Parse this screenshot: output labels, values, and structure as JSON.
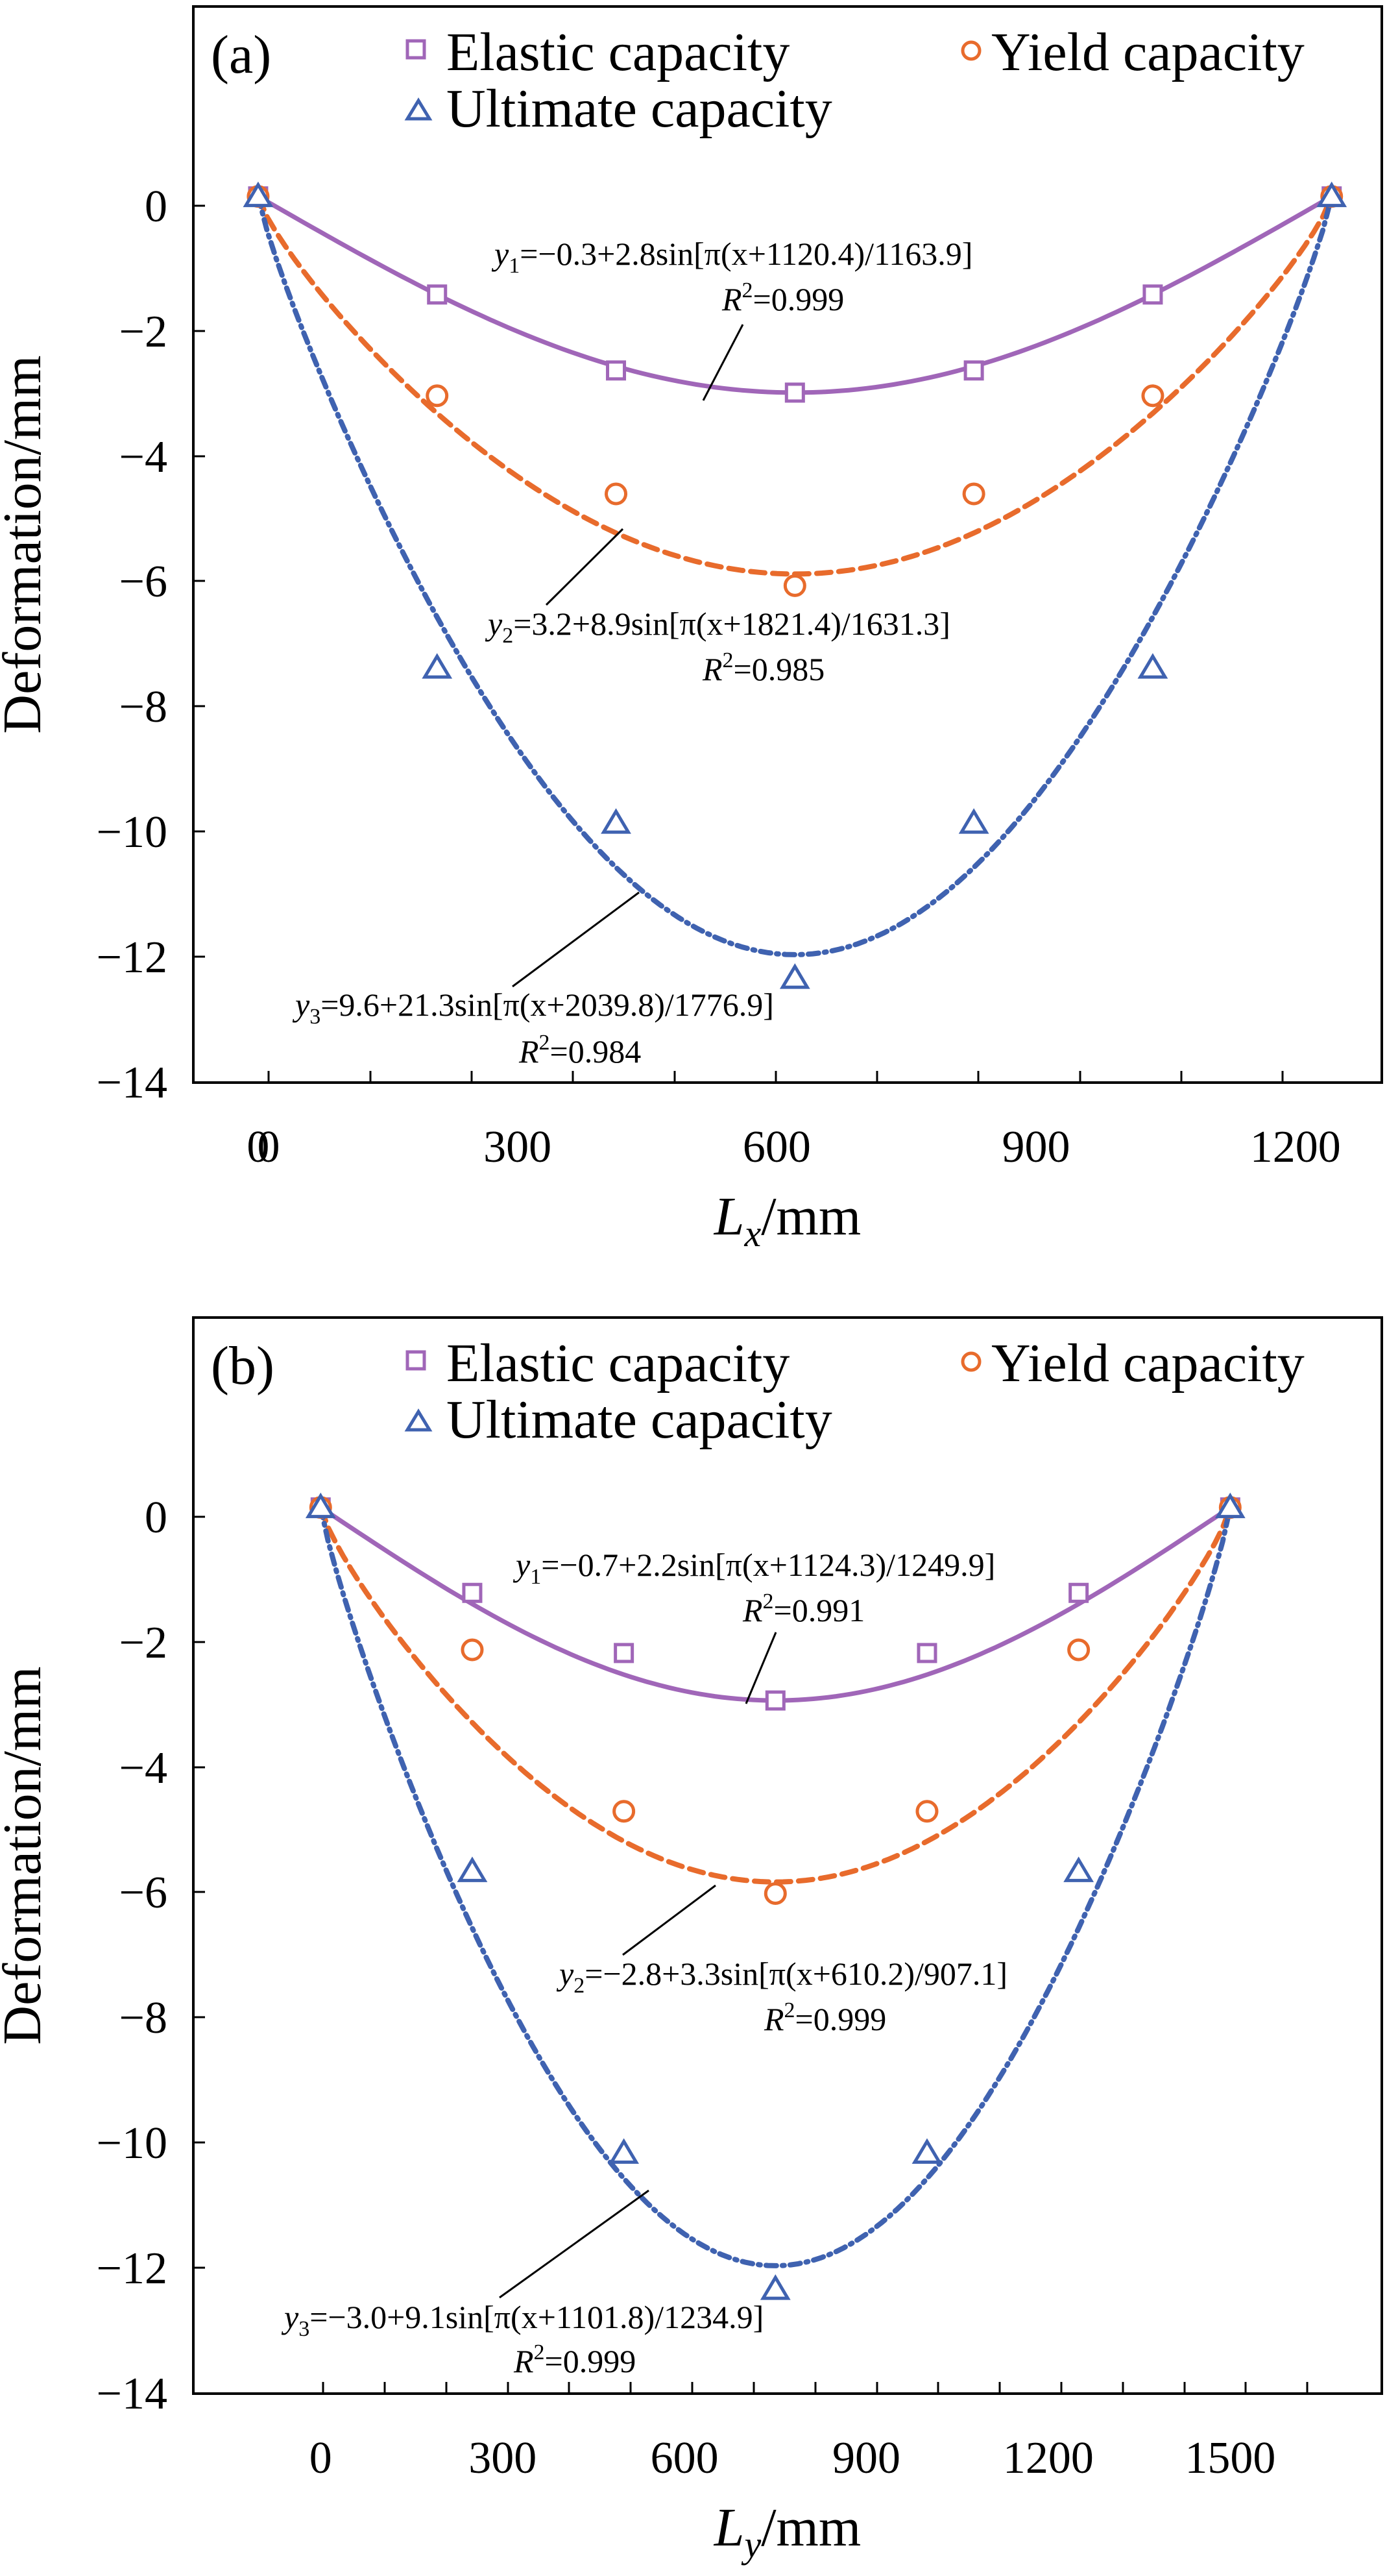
{
  "chart_data": [
    {
      "type": "scatter",
      "panel_label": "(a)",
      "xlabel": {
        "main": "L",
        "sub": "x",
        "unit": "/mm"
      },
      "ylabel": "Deformation/mm",
      "xlim": [
        -75,
        1300
      ],
      "ylim": [
        -14,
        3
      ],
      "xticks": [
        "0",
        "300",
        "600",
        "900",
        "1200"
      ],
      "xtick_values": [
        0,
        300,
        600,
        900,
        1200
      ],
      "yticks": [
        "0",
        "−2",
        "−4",
        "−6",
        "−8",
        "−10",
        "−12",
        "−14"
      ],
      "ytick_values": [
        0,
        -2,
        -4,
        -6,
        -8,
        -10,
        -12,
        -14
      ],
      "legend": {
        "placement": "top",
        "entries": [
          "Elastic capacity",
          "Yield capacity",
          "Ultimate capacity"
        ]
      },
      "series": [
        {
          "name": "Elastic capacity",
          "color": "#a066b8",
          "marker": "square",
          "line": "solid",
          "fit": {
            "a": -0.3,
            "b": 2.8,
            "c": 1120.4,
            "d": 1163.9
          },
          "equation": {
            "var": "y",
            "sub": "1",
            "rhs": "=−0.3+2.8sin[π(x+1120.4)/1163.9]",
            "r2": "=0.999"
          },
          "x": [
            0,
            207,
            414,
            621,
            828,
            1035,
            1242
          ],
          "y": [
            0,
            -1.55,
            -2.75,
            -3.1,
            -2.75,
            -1.55,
            0
          ]
        },
        {
          "name": "Yield capacity",
          "color": "#e86b2c",
          "marker": "circle",
          "line": "dashed",
          "fit": {
            "a": 3.2,
            "b": 8.9,
            "c": 1821.4,
            "d": 1631.3
          },
          "equation": {
            "var": "y",
            "sub": "2",
            "rhs": "=3.2+8.9sin[π(x+1821.4)/1631.3]",
            "r2": "=0.985"
          },
          "x": [
            0,
            207,
            414,
            621,
            828,
            1035,
            1242
          ],
          "y": [
            0,
            -3.15,
            -4.7,
            -6.15,
            -4.7,
            -3.15,
            0
          ]
        },
        {
          "name": "Ultimate capacity",
          "color": "#3f62b0",
          "marker": "triangle",
          "line": "dashdot",
          "fit": {
            "a": 9.6,
            "b": 21.3,
            "c": 2039.8,
            "d": 1776.9
          },
          "equation": {
            "var": "y",
            "sub": "3",
            "rhs": "=9.6+21.3sin[π(x+2039.8)/1776.9]",
            "r2": "=0.984"
          },
          "x": [
            0,
            207,
            414,
            621,
            828,
            1035,
            1242
          ],
          "y": [
            0,
            -7.45,
            -9.9,
            -12.35,
            -9.9,
            -7.45,
            0
          ]
        }
      ]
    },
    {
      "type": "scatter",
      "panel_label": "(b)",
      "xlabel": {
        "main": "L",
        "sub": "y",
        "unit": "/mm"
      },
      "ylabel": "Deformation/mm",
      "xlim": [
        -210,
        1750
      ],
      "ylim": [
        -14,
        3
      ],
      "xticks": [
        "0",
        "300",
        "600",
        "900",
        "1200",
        "1500"
      ],
      "xtick_values": [
        0,
        300,
        600,
        900,
        1200,
        1500
      ],
      "yticks": [
        "0",
        "−2",
        "−4",
        "−6",
        "−8",
        "−10",
        "−12",
        "−14"
      ],
      "ytick_values": [
        0,
        -2,
        -4,
        -6,
        -8,
        -10,
        -12,
        -14
      ],
      "legend": {
        "placement": "top",
        "entries": [
          "Elastic capacity",
          "Yield capacity",
          "Ultimate capacity"
        ]
      },
      "series": [
        {
          "name": "Elastic capacity",
          "color": "#a066b8",
          "marker": "square",
          "line": "solid",
          "fit": {
            "a": -0.7,
            "b": 2.2,
            "c": 1124.3,
            "d": 1249.9
          },
          "equation": {
            "var": "y",
            "sub": "1",
            "rhs": "=−0.7+2.2sin[π(x+1124.3)/1249.9]",
            "r2": "=0.991"
          },
          "x": [
            0,
            250,
            500,
            750,
            1000,
            1250,
            1500
          ],
          "y": [
            0,
            -1.35,
            -2.3,
            -3.05,
            -2.3,
            -1.35,
            0
          ]
        },
        {
          "name": "Yield capacity",
          "color": "#e86b2c",
          "marker": "circle",
          "line": "dashed",
          "fit": {
            "a": -2.8,
            "b": 3.3,
            "c": 610.2,
            "d": 907.1
          },
          "equation": {
            "var": "y",
            "sub": "2",
            "rhs": "=−2.8+3.3sin[π(x+610.2)/907.1]",
            "r2": "=0.999"
          },
          "x": [
            0,
            250,
            500,
            750,
            1000,
            1250,
            1500
          ],
          "y": [
            0,
            -2.25,
            -4.8,
            -6.1,
            -4.8,
            -2.25,
            0
          ]
        },
        {
          "name": "Ultimate capacity",
          "color": "#3f62b0",
          "marker": "triangle",
          "line": "dashdot",
          "fit": {
            "a": -3.0,
            "b": 9.1,
            "c": 1101.8,
            "d": 1234.9
          },
          "equation": {
            "var": "y",
            "sub": "3",
            "rhs": "=−3.0+9.1sin[π(x+1101.8)/1234.9]",
            "r2": "=0.999"
          },
          "x": [
            0,
            250,
            500,
            750,
            1000,
            1250,
            1500
          ],
          "y": [
            0,
            -5.75,
            -10.2,
            -12.35,
            -10.2,
            -5.75,
            0
          ]
        }
      ]
    }
  ]
}
